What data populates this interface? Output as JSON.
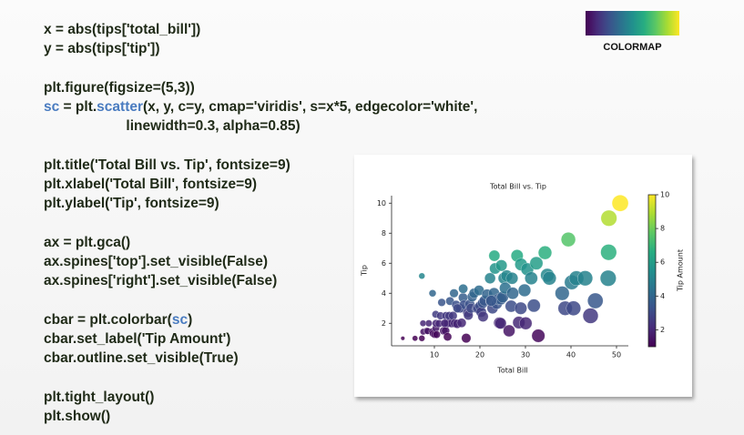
{
  "code": [
    [
      [
        {
          "text": "x = abs(tips['total_bill'])"
        }
      ],
      [
        {
          "text": "y = abs(tips['tip'])"
        }
      ]
    ],
    [
      [
        {
          "text": "plt.figure(figsize=(5,3))"
        }
      ],
      [
        {
          "text": "sc",
          "color": "#4a7cc0"
        },
        {
          "text": " = plt."
        },
        {
          "text": "scatter",
          "color": "#4a7cc0"
        },
        {
          "text": "(x, y, c=y, cmap='viridis', s=x*5, edgecolor='white',"
        }
      ],
      [
        {
          "text": "                     linewidth=0.3, alpha=0.85)"
        }
      ]
    ],
    [
      [
        {
          "text": "plt.title('Total Bill vs. Tip', fontsize=9)"
        }
      ],
      [
        {
          "text": "plt.xlabel('Total Bill', fontsize=9)"
        }
      ],
      [
        {
          "text": "plt.ylabel('Tip', fontsize=9)"
        }
      ]
    ],
    [
      [
        {
          "text": "ax = plt.gca()"
        }
      ],
      [
        {
          "text": "ax.spines['top'].set_visible(False)"
        }
      ],
      [
        {
          "text": "ax.spines['right'].set_visible(False)"
        }
      ]
    ],
    [
      [
        {
          "text": "cbar = plt.colorbar("
        },
        {
          "text": "sc",
          "color": "#4a7cc0"
        },
        {
          "text": ")"
        }
      ],
      [
        {
          "text": "cbar.set_label('Tip Amount')"
        }
      ],
      [
        {
          "text": "cbar.outline.set_visible(True)"
        }
      ]
    ],
    [
      [
        {
          "text": "plt.tight_layout()"
        }
      ],
      [
        {
          "text": "plt.show()"
        }
      ]
    ]
  ],
  "colormap_label": "COLORMAP",
  "chart_data": {
    "type": "scatter",
    "title": "Total Bill vs. Tip",
    "xlabel": "Total Bill",
    "ylabel": "Tip",
    "colormap": "viridis",
    "edgecolor": "#ffffff",
    "alpha": 0.85,
    "x": [
      3.07,
      5.75,
      7.25,
      7.25,
      7.51,
      7.56,
      8.35,
      8.52,
      8.77,
      9.55,
      9.6,
      9.68,
      10.07,
      10.29,
      10.33,
      10.34,
      10.51,
      11.02,
      11.35,
      11.61,
      12.03,
      12.46,
      12.54,
      12.69,
      12.9,
      13.0,
      13.27,
      13.42,
      13.81,
      14.07,
      14.31,
      14.52,
      14.78,
      15.04,
      15.38,
      15.69,
      15.98,
      16.29,
      16.47,
      16.99,
      17.29,
      17.46,
      17.78,
      18.04,
      18.29,
      18.71,
      19.44,
      19.65,
      19.81,
      20.08,
      20.29,
      20.65,
      20.69,
      21.01,
      21.58,
      22.23,
      22.42,
      22.76,
      23.1,
      23.33,
      23.68,
      24.06,
      24.27,
      24.55,
      24.59,
      25.0,
      25.28,
      25.56,
      25.89,
      26.41,
      26.86,
      27.05,
      27.2,
      28.17,
      28.55,
      28.97,
      29.03,
      29.8,
      30.06,
      30.4,
      31.27,
      31.85,
      32.4,
      32.83,
      34.3,
      34.81,
      35.26,
      38.07,
      38.73,
      39.42,
      40.17,
      40.55,
      41.19,
      43.11,
      44.3,
      45.35,
      48.17,
      48.27,
      48.33,
      50.81,
      16.32,
      15.06,
      23.17,
      22.49,
      12.26,
      24.71
    ],
    "values": [
      1,
      1,
      1,
      5.15,
      2,
      1.44,
      1.5,
      1.48,
      2,
      1.45,
      4,
      1.32,
      1.25,
      2.6,
      1.67,
      2,
      1.25,
      1.98,
      2.5,
      3.39,
      1.5,
      1.5,
      2.5,
      2,
      1.1,
      2,
      2.5,
      3.48,
      2,
      2.5,
      4,
      2,
      3.23,
      1.96,
      3,
      3,
      2.03,
      3.71,
      3.23,
      1.01,
      2.71,
      2.54,
      3.27,
      3,
      3.76,
      4,
      3,
      3,
      4.19,
      3.15,
      2.75,
      3.35,
      2.45,
      3.5,
      3.92,
      5,
      3.48,
      3,
      4,
      5.65,
      3.31,
      3.6,
      2.03,
      2,
      3.61,
      3.75,
      5,
      4.34,
      5.16,
      1.5,
      3.14,
      5,
      4,
      6.5,
      2.05,
      3,
      5.92,
      4.2,
      2,
      5.6,
      5,
      3.18,
      6,
      1.17,
      6.7,
      5.2,
      5,
      4,
      3,
      7.58,
      4.73,
      3,
      5,
      5,
      2.5,
      3.5,
      5,
      6.73,
      9,
      10,
      4.3,
      3,
      6.5,
      3.5,
      2,
      5.85
    ],
    "xlim": [
      0.6,
      52.6
    ],
    "ylim": [
      0.5,
      10.5
    ],
    "xticks": [
      10,
      20,
      30,
      40,
      50
    ],
    "yticks": [
      2,
      4,
      6,
      8,
      10
    ],
    "colorbar": {
      "label": "Tip Amount",
      "lim": [
        1,
        10
      ],
      "ticks": [
        2,
        4,
        6,
        8,
        10
      ]
    }
  }
}
